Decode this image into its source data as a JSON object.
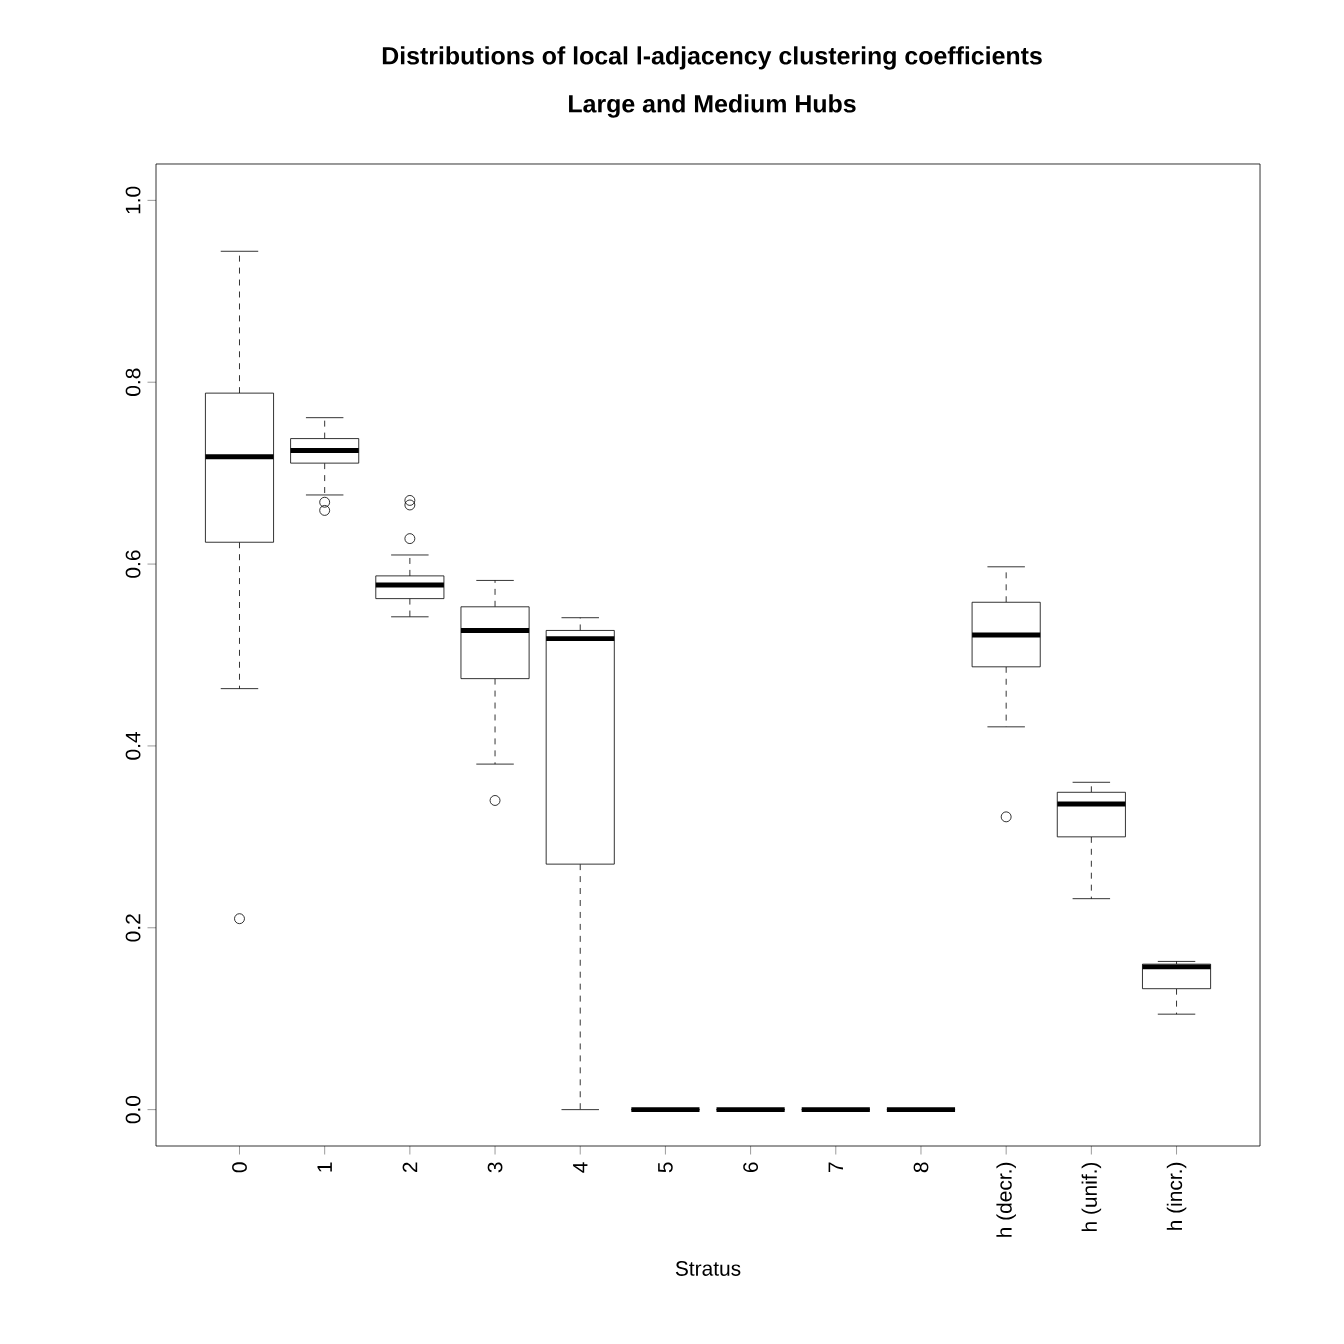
{
  "chart_data": {
    "type": "box",
    "title": "Distributions of local l-adjacency clustering coefficients",
    "subtitle": "Large and Medium Hubs",
    "xlabel": "Stratus",
    "categories": [
      "0",
      "1",
      "2",
      "3",
      "4",
      "5",
      "6",
      "7",
      "8",
      "h (decr.)",
      "h (unif.)",
      "h (incr.)"
    ],
    "ylim": [
      -0.04,
      1.04
    ],
    "yticks": [
      {
        "value": 0,
        "label": "0.0"
      },
      {
        "value": 0.2,
        "label": "0.2"
      },
      {
        "value": 0.4,
        "label": "0.4"
      },
      {
        "value": 0.6,
        "label": "0.6"
      },
      {
        "value": 0.8,
        "label": "0.8"
      },
      {
        "value": 1,
        "label": "1.0"
      }
    ],
    "boxes": [
      {
        "low": 0.463,
        "q1": 0.624,
        "median": 0.718,
        "q3": 0.788,
        "high": 0.944,
        "outliers": [
          0.21
        ]
      },
      {
        "low": 0.676,
        "q1": 0.711,
        "median": 0.725,
        "q3": 0.738,
        "high": 0.761,
        "outliers": [
          0.668,
          0.659
        ]
      },
      {
        "low": 0.542,
        "q1": 0.562,
        "median": 0.577,
        "q3": 0.587,
        "high": 0.61,
        "outliers": [
          0.67,
          0.665,
          0.628
        ]
      },
      {
        "low": 0.38,
        "q1": 0.474,
        "median": 0.527,
        "q3": 0.553,
        "high": 0.582,
        "outliers": [
          0.34
        ]
      },
      {
        "low": 0,
        "q1": 0.27,
        "median": 0.518,
        "q3": 0.527,
        "high": 0.541
      },
      {
        "low": 0,
        "q1": 0,
        "median": 0,
        "q3": 0,
        "high": 0
      },
      {
        "low": 0,
        "q1": 0,
        "median": 0,
        "q3": 0,
        "high": 0
      },
      {
        "low": 0,
        "q1": 0,
        "median": 0,
        "q3": 0,
        "high": 0
      },
      {
        "low": 0,
        "q1": 0,
        "median": 0,
        "q3": 0,
        "high": 0
      },
      {
        "low": 0.421,
        "q1": 0.487,
        "median": 0.522,
        "q3": 0.558,
        "high": 0.597,
        "outliers": [
          0.322
        ]
      },
      {
        "low": 0.232,
        "q1": 0.3,
        "median": 0.336,
        "q3": 0.349,
        "high": 0.36
      },
      {
        "low": 0.105,
        "q1": 0.133,
        "median": 0.157,
        "q3": 0.16,
        "high": 0.163
      }
    ]
  }
}
